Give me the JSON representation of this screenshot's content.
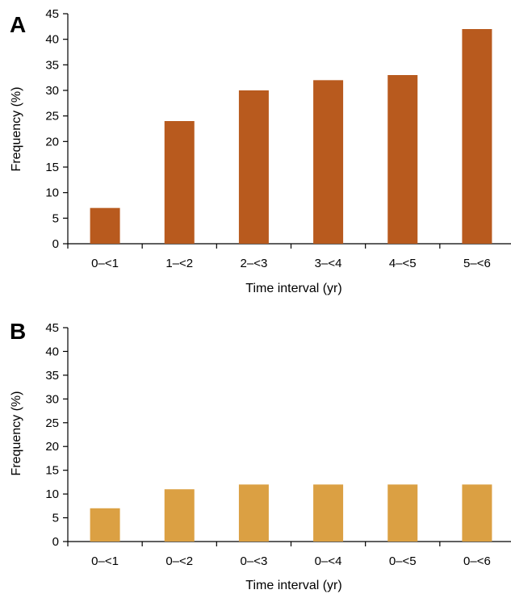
{
  "chart_data": [
    {
      "panel": "A",
      "type": "bar",
      "categories": [
        "0–<1",
        "1–<2",
        "2–<3",
        "3–<4",
        "4–<5",
        "5–<6"
      ],
      "values": [
        7,
        24,
        30,
        32,
        33,
        42
      ],
      "xlabel": "Time interval (yr)",
      "ylabel": "Frequency (%)",
      "ylim": [
        0,
        45
      ],
      "yticks": [
        0,
        5,
        10,
        15,
        20,
        25,
        30,
        35,
        40,
        45
      ],
      "bar_color": "#b85a1e",
      "grid": false
    },
    {
      "panel": "B",
      "type": "bar",
      "categories": [
        "0–<1",
        "0–<2",
        "0–<3",
        "0–<4",
        "0–<5",
        "0–<6"
      ],
      "values": [
        7,
        11,
        12,
        12,
        12,
        12
      ],
      "xlabel": "Time interval (yr)",
      "ylabel": "Frequency (%)",
      "ylim": [
        0,
        45
      ],
      "yticks": [
        0,
        5,
        10,
        15,
        20,
        25,
        30,
        35,
        40,
        45
      ],
      "bar_color": "#dba043",
      "grid": false
    }
  ]
}
